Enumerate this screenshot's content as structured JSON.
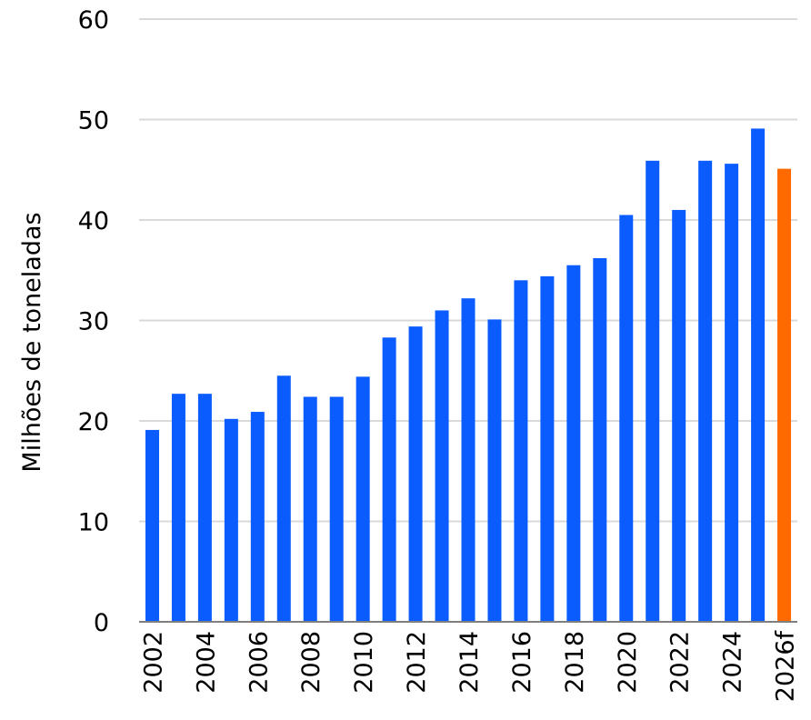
{
  "chart_data": {
    "type": "bar",
    "ylabel": "Milhões de toneladas",
    "xlabel": "",
    "ylim": [
      0,
      60
    ],
    "yticks": [
      0,
      10,
      20,
      30,
      40,
      50,
      60
    ],
    "grid": true,
    "categories": [
      "2002",
      "2003",
      "2004",
      "2005",
      "2006",
      "2007",
      "2008",
      "2009",
      "2010",
      "2011",
      "2012",
      "2013",
      "2014",
      "2015",
      "2016",
      "2017",
      "2018",
      "2019",
      "2020",
      "2021",
      "2022",
      "2023",
      "2024",
      "2025",
      "2026f"
    ],
    "x_tick_labels": [
      "2002",
      "",
      "2004",
      "",
      "2006",
      "",
      "2008",
      "",
      "2010",
      "",
      "2012",
      "",
      "2014",
      "",
      "2016",
      "",
      "2018",
      "",
      "2020",
      "",
      "2022",
      "",
      "2024",
      "",
      "2026f"
    ],
    "values": [
      19.1,
      22.7,
      22.7,
      20.2,
      20.9,
      24.5,
      22.4,
      22.4,
      24.4,
      28.3,
      29.4,
      31.0,
      32.2,
      30.1,
      34.0,
      34.4,
      35.5,
      36.2,
      40.5,
      45.9,
      41.0,
      45.9,
      45.6,
      49.1,
      45.1
    ],
    "bar_kinds": [
      "actual",
      "actual",
      "actual",
      "actual",
      "actual",
      "actual",
      "actual",
      "actual",
      "actual",
      "actual",
      "actual",
      "actual",
      "actual",
      "actual",
      "actual",
      "actual",
      "actual",
      "actual",
      "actual",
      "actual",
      "actual",
      "actual",
      "actual",
      "actual",
      "forecast"
    ],
    "colors": {
      "actual": "#0a5cff",
      "forecast": "#ff6a00"
    }
  }
}
